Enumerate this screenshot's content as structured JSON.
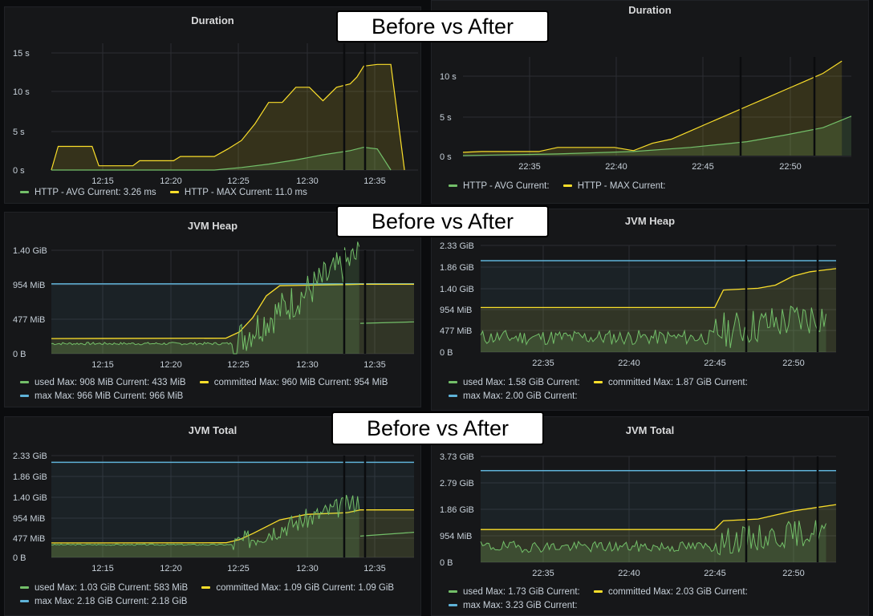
{
  "banner_label": "Before vs After",
  "colors": {
    "green": "#73bf69",
    "yellow": "#fade2a",
    "blue": "#8ab8ff",
    "max_blue": "#5fb3d9",
    "bg": "#161719",
    "grid": "#2c2e33"
  },
  "panels": {
    "duration_before": {
      "title": "Duration",
      "legend": {
        "avg": "HTTP - AVG  Current: 3.26 ms",
        "max": "HTTP - MAX  Current: 11.0 ms"
      }
    },
    "duration_after": {
      "title": "Duration",
      "legend": {
        "avg": "HTTP - AVG  Current:",
        "max": "HTTP - MAX  Current:"
      }
    },
    "heap_before": {
      "title": "JVM Heap",
      "legend": {
        "used": "used  Max: 908 MiB  Current: 433 MiB",
        "committed": "committed  Max: 960 MiB  Current: 954 MiB",
        "max": "max  Max: 966 MiB  Current: 966 MiB"
      }
    },
    "heap_after": {
      "title": "JVM Heap",
      "legend": {
        "used": "used  Max: 1.58 GiB  Current:",
        "committed": "committed  Max: 1.87 GiB  Current:",
        "max": "max  Max: 2.00 GiB  Current:"
      }
    },
    "total_before": {
      "title": "JVM Total",
      "legend": {
        "used": "used  Max: 1.03 GiB  Current: 583 MiB",
        "committed": "committed  Max: 1.09 GiB  Current: 1.09 GiB",
        "max": "max  Max: 2.18 GiB  Current: 2.18 GiB"
      }
    },
    "total_after": {
      "title": "JVM Total",
      "legend": {
        "used": "used  Max: 1.73 GiB  Current:",
        "committed": "committed  Max: 2.03 GiB  Current:",
        "max": "max  Max: 3.23 GiB  Current:"
      }
    }
  },
  "chart_data": [
    {
      "type": "line",
      "title": "Duration",
      "y_ticks": [
        "15 s",
        "10 s",
        "5 s",
        "0 s"
      ],
      "x_ticks": [
        "12:15",
        "12:20",
        "12:25",
        "12:30",
        "12:35"
      ],
      "x_range": [
        "12:11",
        "12:38"
      ],
      "ylim": [
        0,
        15
      ],
      "unit": "s",
      "series": [
        {
          "name": "HTTP - AVG",
          "x": [
            "12:11",
            "12:14",
            "12:17",
            "12:20",
            "12:23",
            "12:25",
            "12:27",
            "12:29",
            "12:31",
            "12:33",
            "12:34",
            "12:35",
            "12:36"
          ],
          "y": [
            0,
            0,
            0,
            0,
            0,
            0.3,
            0.7,
            1.2,
            1.8,
            2.3,
            2.7,
            2.5,
            0
          ]
        },
        {
          "name": "HTTP - MAX",
          "x": [
            "12:11",
            "12:11.5",
            "12:14",
            "12:14.5",
            "12:17",
            "12:17.5",
            "12:20",
            "12:20.5",
            "12:23",
            "12:24",
            "12:25",
            "12:26",
            "12:27",
            "12:28",
            "12:29",
            "12:30",
            "12:31",
            "12:32",
            "12:33",
            "12:33.5",
            "12:34",
            "12:35",
            "12:36",
            "12:37"
          ],
          "y": [
            0,
            2.8,
            2.8,
            0.5,
            0.5,
            1.1,
            1.1,
            1.6,
            1.6,
            2.5,
            3.5,
            5.5,
            8,
            8,
            9.8,
            9.8,
            8.2,
            9.8,
            10.2,
            11,
            12.3,
            12.5,
            12.5,
            0
          ]
        }
      ]
    },
    {
      "type": "line",
      "title": "Duration",
      "y_ticks": [
        "10 s",
        "5 s",
        "0 s"
      ],
      "x_ticks": [
        "22:35",
        "22:40",
        "22:45",
        "22:50"
      ],
      "x_range": [
        "22:33",
        "22:53.5"
      ],
      "ylim": [
        0,
        12
      ],
      "unit": "s",
      "series": [
        {
          "name": "HTTP - AVG",
          "x": [
            "22:33",
            "22:38",
            "22:42",
            "22:45",
            "22:48",
            "22:50",
            "22:52",
            "22:53.5"
          ],
          "y": [
            0,
            0.2,
            0.5,
            1,
            1.7,
            2.5,
            3.4,
            4.8
          ]
        },
        {
          "name": "HTTP - MAX",
          "x": [
            "22:33",
            "22:34",
            "22:37",
            "22:38",
            "22:41",
            "22:42",
            "22:43",
            "22:44",
            "22:45",
            "22:46",
            "22:47",
            "22:48",
            "22:49",
            "22:50",
            "22:51",
            "22:52",
            "22:53"
          ],
          "y": [
            0.4,
            0.5,
            0.5,
            1,
            1,
            0.6,
            1.5,
            2,
            3,
            4,
            5,
            6,
            7,
            8,
            9,
            10,
            11.5
          ]
        }
      ]
    },
    {
      "type": "line",
      "title": "JVM Heap",
      "y_ticks": [
        "1.40 GiB",
        "954 MiB",
        "477 MiB",
        "0 B"
      ],
      "x_ticks": [
        "12:15",
        "12:20",
        "12:25",
        "12:30",
        "12:35"
      ],
      "x_range": [
        "12:11",
        "12:38"
      ],
      "ylim_mib": [
        0,
        1430
      ],
      "series": [
        {
          "name": "used",
          "max_mib": 908,
          "current_mib": 433
        },
        {
          "name": "committed",
          "max_mib": 960,
          "current_mib": 954
        },
        {
          "name": "max",
          "max_mib": 966,
          "current_mib": 966
        }
      ]
    },
    {
      "type": "line",
      "title": "JVM Heap",
      "y_ticks": [
        "2.33 GiB",
        "1.86 GiB",
        "1.40 GiB",
        "954 MiB",
        "477 MiB",
        "0 B"
      ],
      "x_ticks": [
        "22:35",
        "22:40",
        "22:45",
        "22:50"
      ],
      "x_range": [
        "22:33",
        "22:53.5"
      ],
      "ylim_mib": [
        0,
        2390
      ],
      "series": [
        {
          "name": "used",
          "max_gib": 1.58
        },
        {
          "name": "committed",
          "max_gib": 1.87
        },
        {
          "name": "max",
          "max_gib": 2.0
        }
      ]
    },
    {
      "type": "line",
      "title": "JVM Total",
      "y_ticks": [
        "2.33 GiB",
        "1.86 GiB",
        "1.40 GiB",
        "954 MiB",
        "477 MiB",
        "0 B"
      ],
      "x_ticks": [
        "12:15",
        "12:20",
        "12:25",
        "12:30",
        "12:35"
      ],
      "x_range": [
        "12:11",
        "12:38"
      ],
      "ylim_mib": [
        0,
        2390
      ],
      "series": [
        {
          "name": "used",
          "max_gib": 1.03,
          "current_mib": 583
        },
        {
          "name": "committed",
          "max_gib": 1.09,
          "current_gib": 1.09
        },
        {
          "name": "max",
          "max_gib": 2.18,
          "current_gib": 2.18
        }
      ]
    },
    {
      "type": "line",
      "title": "JVM Total",
      "y_ticks": [
        "3.73 GiB",
        "2.79 GiB",
        "1.86 GiB",
        "954 MiB",
        "0 B"
      ],
      "x_ticks": [
        "22:35",
        "22:40",
        "22:45",
        "22:50"
      ],
      "x_range": [
        "22:33",
        "22:53.5"
      ],
      "ylim_mib": [
        0,
        3820
      ],
      "series": [
        {
          "name": "used",
          "max_gib": 1.73
        },
        {
          "name": "committed",
          "max_gib": 2.03
        },
        {
          "name": "max",
          "max_gib": 3.23
        }
      ]
    }
  ]
}
